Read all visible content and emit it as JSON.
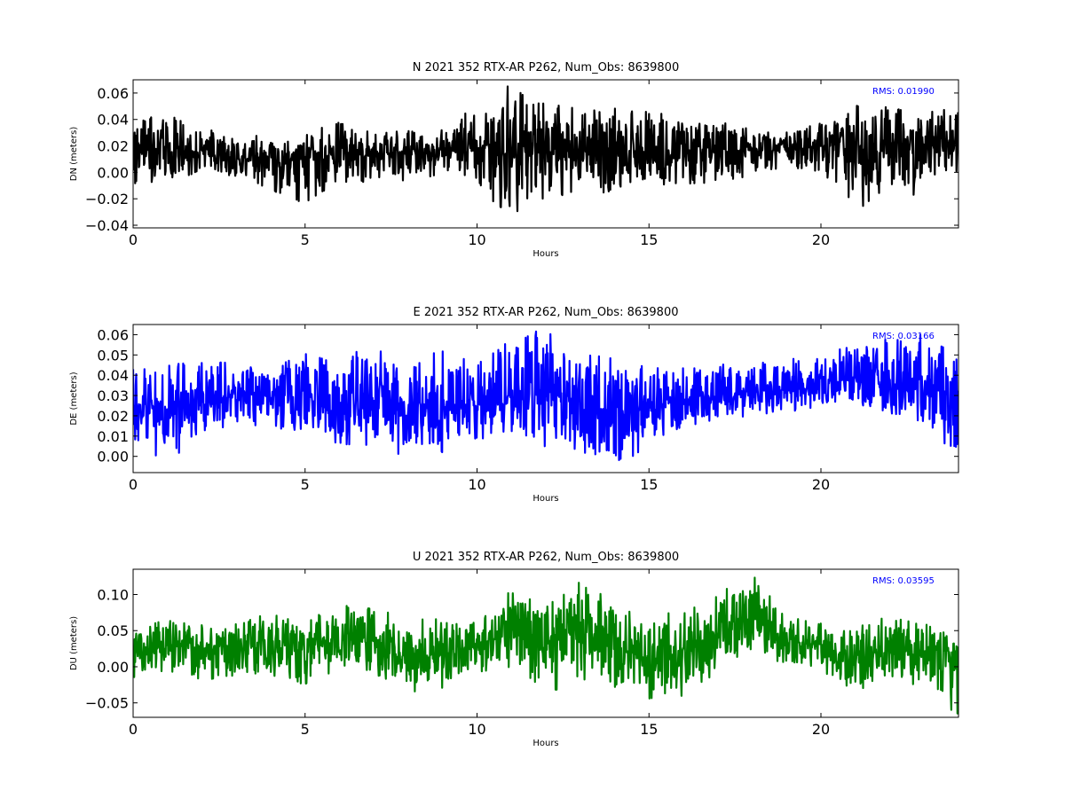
{
  "chart_data": [
    {
      "type": "line",
      "title": "N 2021 352 RTX-AR  P262, Num_Obs: 8639800",
      "xlabel": "Hours",
      "ylabel": "DN (meters)",
      "xlim": [
        0,
        24
      ],
      "ylim": [
        -0.042,
        0.07
      ],
      "xticks": [
        "0",
        "5",
        "10",
        "15",
        "20"
      ],
      "yticks": [
        "0.06",
        "0.04",
        "0.02",
        "0.00",
        "−0.02",
        "−0.04"
      ],
      "grid": false,
      "color": "#000000",
      "annotation": "RMS:  0.01990",
      "series": [
        {
          "hours": [
            0,
            1,
            2,
            3,
            4,
            5,
            6,
            7,
            8,
            9,
            10,
            11,
            12,
            13,
            14,
            15,
            16,
            17,
            18,
            19,
            20,
            21,
            22,
            23,
            24
          ],
          "center": [
            0.015,
            0.018,
            0.015,
            0.01,
            0.01,
            0.012,
            0.016,
            0.012,
            0.014,
            0.016,
            0.018,
            0.014,
            0.014,
            0.015,
            0.015,
            0.016,
            0.015,
            0.015,
            0.017,
            0.018,
            0.02,
            0.022,
            0.022,
            0.02,
            0.022
          ],
          "max": [
            0.04,
            0.045,
            0.035,
            0.025,
            0.03,
            0.03,
            0.038,
            0.03,
            0.032,
            0.032,
            0.052,
            0.068,
            0.052,
            0.048,
            0.05,
            0.048,
            0.04,
            0.04,
            0.032,
            0.032,
            0.04,
            0.05,
            0.058,
            0.046,
            0.05
          ],
          "min": [
            -0.01,
            -0.008,
            0.0,
            -0.004,
            -0.014,
            -0.024,
            -0.008,
            -0.008,
            -0.006,
            -0.002,
            -0.01,
            -0.038,
            -0.022,
            -0.014,
            -0.016,
            -0.012,
            -0.008,
            -0.012,
            -0.002,
            0.004,
            0.0,
            -0.026,
            -0.028,
            -0.014,
            0.0
          ]
        }
      ]
    },
    {
      "type": "line",
      "title": "E 2021 352 RTX-AR  P262, Num_Obs: 8639800",
      "xlabel": "Hours",
      "ylabel": "DE (meters)",
      "xlim": [
        0,
        24
      ],
      "ylim": [
        -0.008,
        0.065
      ],
      "xticks": [
        "0",
        "5",
        "10",
        "15",
        "20"
      ],
      "yticks": [
        "0.06",
        "0.05",
        "0.04",
        "0.03",
        "0.02",
        "0.01",
        "0.00"
      ],
      "grid": false,
      "color": "#0000ff",
      "annotation": "RMS:  0.03166",
      "series": [
        {
          "hours": [
            0,
            1,
            2,
            3,
            4,
            5,
            6,
            7,
            8,
            9,
            10,
            11,
            12,
            13,
            14,
            15,
            16,
            17,
            18,
            19,
            20,
            21,
            22,
            23,
            24
          ],
          "center": [
            0.025,
            0.025,
            0.03,
            0.03,
            0.028,
            0.03,
            0.024,
            0.024,
            0.022,
            0.024,
            0.025,
            0.032,
            0.03,
            0.026,
            0.022,
            0.025,
            0.028,
            0.03,
            0.032,
            0.033,
            0.035,
            0.038,
            0.036,
            0.034,
            0.03
          ],
          "max": [
            0.045,
            0.045,
            0.048,
            0.046,
            0.044,
            0.052,
            0.048,
            0.056,
            0.042,
            0.055,
            0.046,
            0.058,
            0.063,
            0.05,
            0.05,
            0.045,
            0.045,
            0.046,
            0.048,
            0.05,
            0.05,
            0.056,
            0.058,
            0.064,
            0.05
          ],
          "min": [
            0.005,
            -0.006,
            0.012,
            0.015,
            0.014,
            0.012,
            0.006,
            0.004,
            0.0,
            0.002,
            0.008,
            0.012,
            0.004,
            0.002,
            -0.006,
            0.004,
            0.014,
            0.018,
            0.02,
            0.022,
            0.024,
            0.025,
            0.02,
            0.015,
            0.0
          ]
        }
      ]
    },
    {
      "type": "line",
      "title": "U 2021 352 RTX-AR  P262, Num_Obs: 8639800",
      "xlabel": "Hours",
      "ylabel": "DU (meters)",
      "xlim": [
        0,
        24
      ],
      "ylim": [
        -0.07,
        0.135
      ],
      "xticks": [
        "0",
        "5",
        "10",
        "15",
        "20"
      ],
      "yticks": [
        "0.10",
        "0.05",
        "0.00",
        "−0.05"
      ],
      "grid": false,
      "color": "#008000",
      "annotation": "RMS:  0.03595",
      "series": [
        {
          "hours": [
            0,
            1,
            2,
            3,
            4,
            5,
            6,
            7,
            8,
            9,
            10,
            11,
            12,
            13,
            14,
            15,
            16,
            17,
            18,
            19,
            20,
            21,
            22,
            23,
            24
          ],
          "center": [
            0.02,
            0.03,
            0.025,
            0.03,
            0.035,
            0.015,
            0.045,
            0.035,
            0.01,
            0.02,
            0.03,
            0.05,
            0.03,
            0.06,
            0.03,
            0.01,
            0.02,
            0.04,
            0.07,
            0.035,
            0.03,
            0.01,
            0.02,
            0.02,
            0.02
          ],
          "max": [
            0.05,
            0.07,
            0.06,
            0.06,
            0.075,
            0.06,
            0.09,
            0.08,
            0.07,
            0.07,
            0.07,
            0.11,
            0.09,
            0.12,
            0.09,
            0.07,
            0.08,
            0.1,
            0.13,
            0.07,
            0.06,
            0.06,
            0.07,
            0.06,
            0.05
          ],
          "min": [
            -0.02,
            -0.01,
            -0.03,
            -0.01,
            -0.01,
            -0.045,
            0.0,
            -0.01,
            -0.04,
            -0.03,
            -0.01,
            0.0,
            -0.04,
            -0.02,
            -0.03,
            -0.045,
            -0.04,
            -0.01,
            0.01,
            0.0,
            -0.01,
            -0.04,
            -0.02,
            -0.03,
            -0.07
          ]
        }
      ]
    }
  ]
}
